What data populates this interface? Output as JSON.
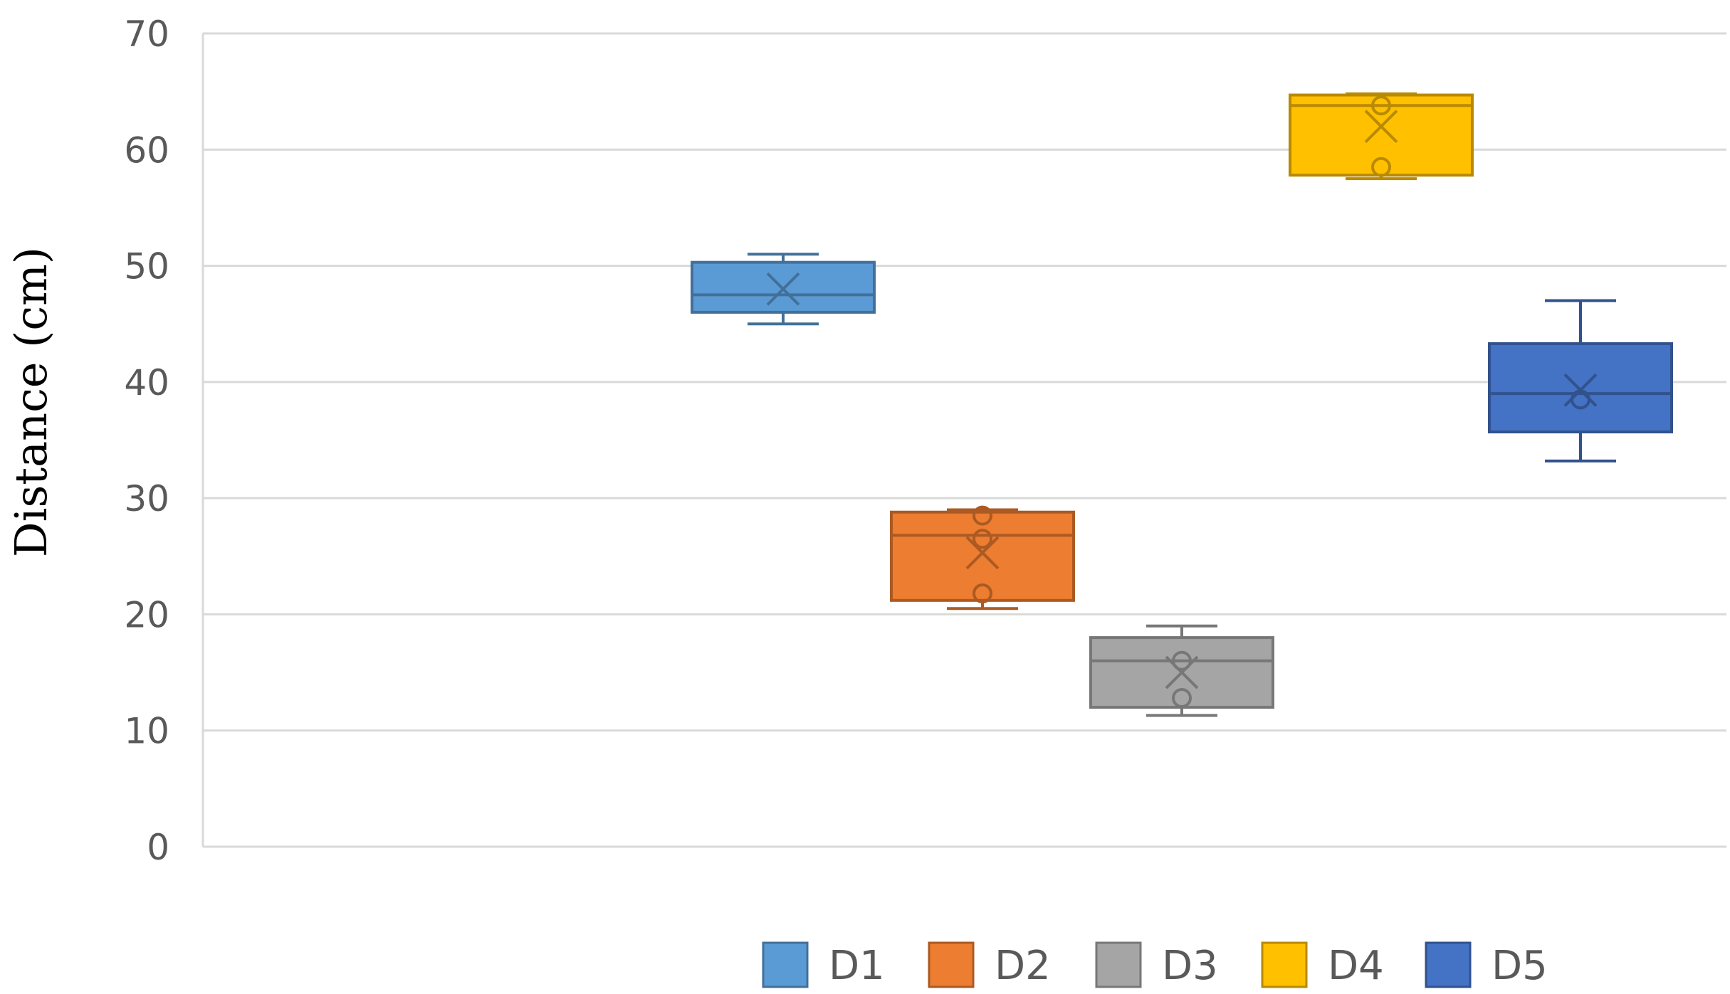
{
  "chart_data": {
    "type": "box",
    "title": "",
    "xlabel": "",
    "ylabel": "Distance (cm)",
    "ylim": [
      0,
      70
    ],
    "yticks": [
      0,
      10,
      20,
      30,
      40,
      50,
      60,
      70
    ],
    "grid": true,
    "legend_position": "bottom",
    "series": [
      {
        "name": "D1",
        "color": "#5b9bd5",
        "min": 45,
        "q1": 46,
        "median": 47.5,
        "q3": 50.3,
        "max": 51,
        "mean": 48,
        "outliers": []
      },
      {
        "name": "D2",
        "color": "#ed7d31",
        "min": 20.5,
        "q1": 21.2,
        "median": 26.8,
        "q3": 28.8,
        "max": 29,
        "mean": 25.3,
        "outliers": [
          21.8,
          26.5,
          28.5
        ]
      },
      {
        "name": "D3",
        "color": "#a5a5a5",
        "min": 11.3,
        "q1": 12,
        "median": 16,
        "q3": 18,
        "max": 19,
        "mean": 15,
        "outliers": [
          12.8,
          16
        ]
      },
      {
        "name": "D4",
        "color": "#ffc000",
        "min": 57.5,
        "q1": 57.8,
        "median": 63.8,
        "q3": 64.7,
        "max": 64.8,
        "mean": 62,
        "outliers": [
          58.5,
          63.8
        ]
      },
      {
        "name": "D5",
        "color": "#4472c4",
        "min": 33.2,
        "q1": 35.7,
        "median": 39,
        "q3": 43.3,
        "max": 47,
        "mean": 39.3,
        "outliers": [
          38.5
        ]
      }
    ]
  }
}
